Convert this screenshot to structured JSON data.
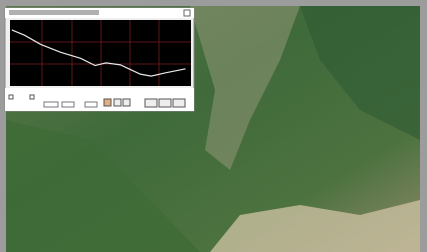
{
  "chart_data": {
    "type": "line",
    "x": [
      1,
      8,
      17,
      28,
      39,
      47,
      53,
      61,
      72,
      78,
      86,
      97
    ],
    "series": [
      {
        "color": "#e8e8e8",
        "values": [
          85,
          77,
          63,
          51,
          42,
          31,
          35,
          32,
          18,
          15,
          20,
          26
        ]
      }
    ],
    "xlim": [
      0,
      100
    ],
    "ylim": [
      0,
      100
    ],
    "grid": true
  }
}
